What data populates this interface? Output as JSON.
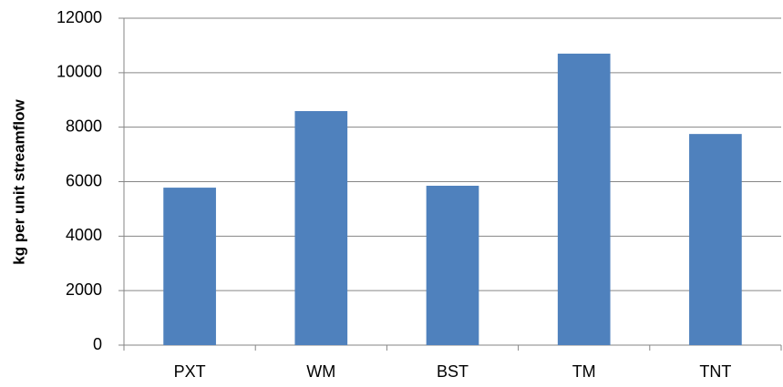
{
  "chart_data": {
    "type": "bar",
    "y_label": "kg per unit streamflow",
    "categories": [
      "PXT",
      "WM",
      "BST",
      "TM",
      "TNT"
    ],
    "values": [
      5780,
      8590,
      5850,
      10700,
      7750
    ],
    "color": "#4f81bd",
    "ylim": [
      0,
      12000
    ],
    "yticks": [
      0,
      2000,
      4000,
      6000,
      8000,
      10000,
      12000
    ],
    "grid": true
  }
}
